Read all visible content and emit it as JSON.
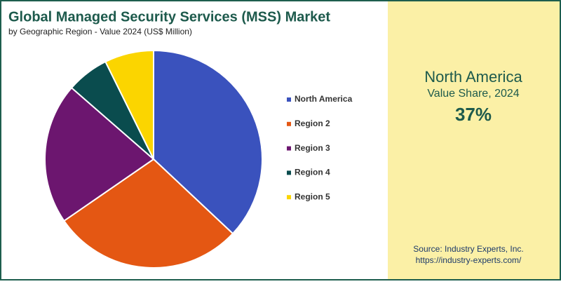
{
  "chart_data": {
    "type": "pie",
    "title": "Global Managed Security Services (MSS) Market",
    "subtitle": "by Geographic Region - Value 2024 (US$ Million)",
    "categories": [
      "North America",
      "Region 2",
      "Region 3",
      "Region 4",
      "Region 5"
    ],
    "values": [
      37,
      28.4,
      21,
      6.3,
      7.3
    ],
    "colors": [
      "#3a52bd",
      "#e45713",
      "#6c166f",
      "#0a4c4e",
      "#fbd500"
    ],
    "legend": "right"
  },
  "highlight": {
    "name": "North America",
    "label": "Value Share, 2024",
    "value": 37,
    "value_label": "37%"
  },
  "source": {
    "label": "Source: Industry Experts, Inc.",
    "url": "https://industry-experts.com/"
  }
}
